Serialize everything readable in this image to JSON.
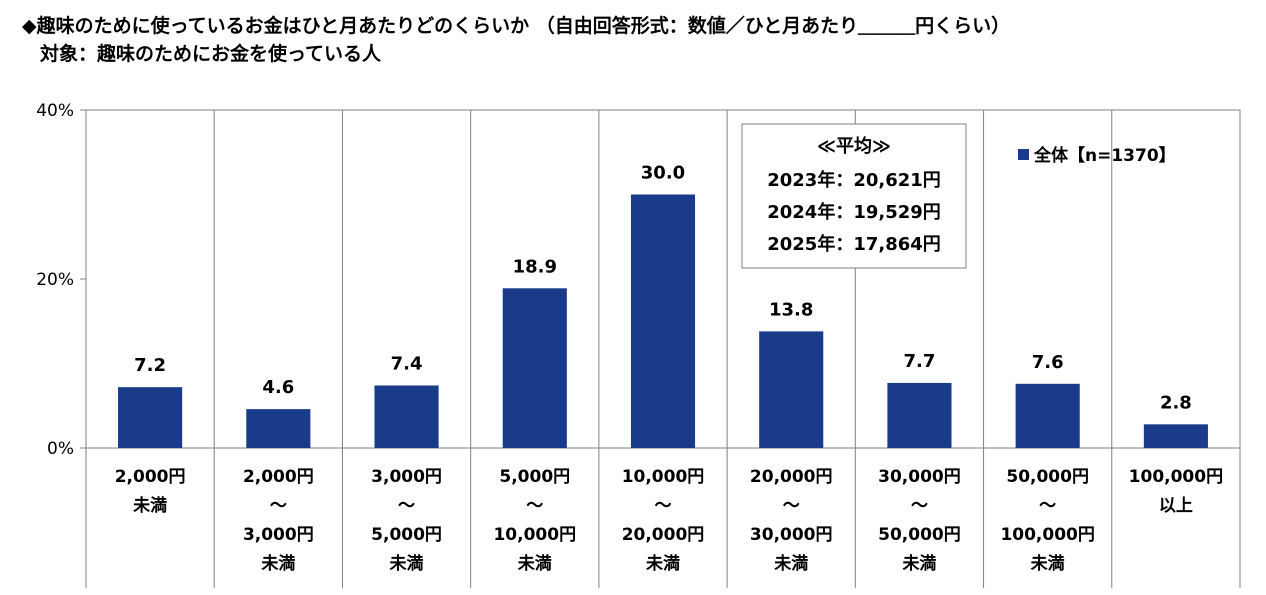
{
  "chart_data": {
    "type": "bar",
    "title": "◆趣味のために使っているお金はひと月あたりどのくらいか （自由回答形式：数値／ひと月あたり＿＿＿円くらい）",
    "subtitle": "対象：趣味のためにお金を使っている人",
    "categories": [
      [
        "2,000円",
        "未満"
      ],
      [
        "2,000円",
        "～",
        "3,000円",
        "未満"
      ],
      [
        "3,000円",
        "～",
        "5,000円",
        "未満"
      ],
      [
        "5,000円",
        "～",
        "10,000円",
        "未満"
      ],
      [
        "10,000円",
        "～",
        "20,000円",
        "未満"
      ],
      [
        "20,000円",
        "～",
        "30,000円",
        "未満"
      ],
      [
        "30,000円",
        "～",
        "50,000円",
        "未満"
      ],
      [
        "50,000円",
        "～",
        "100,000円",
        "未満"
      ],
      [
        "100,000円",
        "以上"
      ]
    ],
    "series": [
      {
        "name": "全体【n=1370】",
        "values": [
          7.2,
          4.6,
          7.4,
          18.9,
          30.0,
          13.8,
          7.7,
          7.6,
          2.8
        ],
        "color": "#1a3a8a"
      }
    ],
    "data_labels": [
      "7.2",
      "4.6",
      "7.4",
      "18.9",
      "30.0",
      "13.8",
      "7.7",
      "7.6",
      "2.8"
    ],
    "ylim": [
      0,
      40
    ],
    "yticks": [
      "0%",
      "20%",
      "40%"
    ],
    "ytick_values": [
      0,
      20,
      40
    ],
    "legend_position": "top-right",
    "annotation": {
      "heading": "≪平均≫",
      "lines": [
        "2023年：20,621円",
        "2024年：19,529円",
        "2025年：17,864円"
      ]
    }
  }
}
